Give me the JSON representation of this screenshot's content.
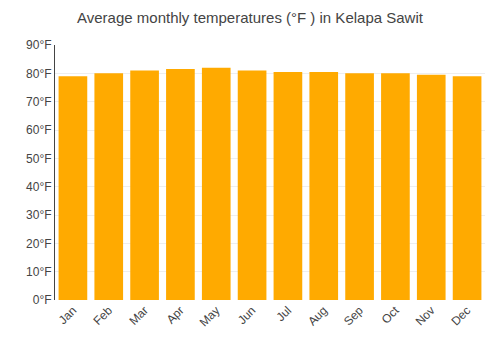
{
  "chart_data": {
    "type": "bar",
    "title": "Average monthly temperatures (°F ) in Kelapa Sawit",
    "categories": [
      "Jan",
      "Feb",
      "Mar",
      "Apr",
      "May",
      "Jun",
      "Jul",
      "Aug",
      "Sep",
      "Oct",
      "Nov",
      "Dec"
    ],
    "values": [
      79,
      80,
      81,
      81.5,
      82,
      81,
      80.5,
      80.5,
      80,
      80,
      79.5,
      79
    ],
    "color": "#FFAA00",
    "ylim": [
      0,
      90
    ],
    "yticks": [
      {
        "value": 0,
        "label": "0°F"
      },
      {
        "value": 10,
        "label": "10°F"
      },
      {
        "value": 20,
        "label": "20°F"
      },
      {
        "value": 30,
        "label": "30°F"
      },
      {
        "value": 40,
        "label": "40°F"
      },
      {
        "value": 50,
        "label": "50°F"
      },
      {
        "value": 60,
        "label": "60°F"
      },
      {
        "value": 70,
        "label": "70°F"
      },
      {
        "value": 80,
        "label": "80°F"
      },
      {
        "value": 90,
        "label": "90°F"
      }
    ],
    "grid": true
  }
}
